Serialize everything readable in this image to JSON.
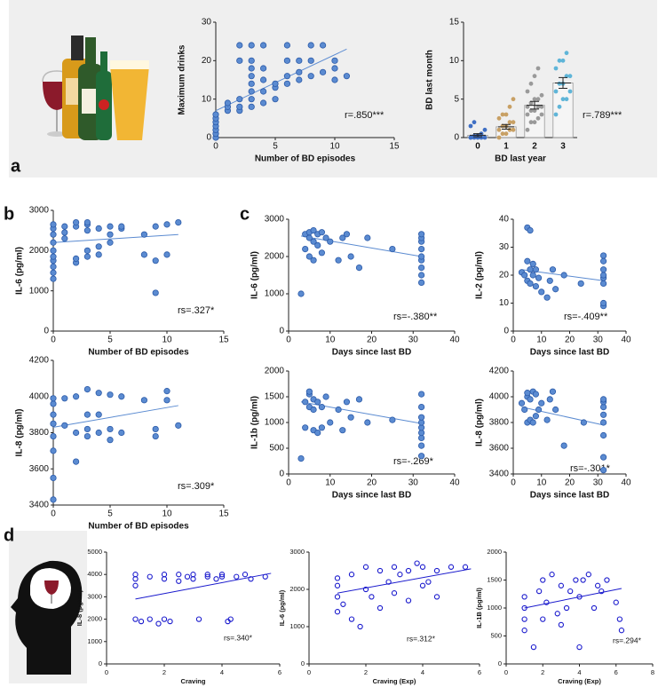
{
  "panel_labels": [
    "a",
    "b",
    "c",
    "d"
  ],
  "chart_data": [
    {
      "type": "scatter",
      "xlabel": "Number of BD episodes",
      "ylabel": "Maximum drinks",
      "annotation": "r=.850***",
      "x": [
        0,
        0,
        0,
        0,
        0,
        0,
        0,
        1,
        1,
        1,
        2,
        2,
        2,
        2,
        2,
        3,
        3,
        3,
        3,
        3,
        3,
        3,
        3,
        4,
        4,
        4,
        4,
        4,
        5,
        5,
        5,
        6,
        6,
        6,
        6,
        7,
        7,
        7,
        8,
        8,
        8,
        9,
        9,
        10,
        10,
        10,
        11
      ],
      "y": [
        0,
        1,
        2,
        3,
        4,
        5,
        6,
        7,
        8,
        9,
        7,
        8,
        10,
        20,
        24,
        8,
        10,
        12,
        14,
        16,
        18,
        20,
        24,
        9,
        12,
        15,
        18,
        24,
        10,
        13,
        14,
        14,
        16,
        20,
        24,
        15,
        17,
        20,
        16,
        20,
        24,
        17,
        24,
        15,
        18,
        20,
        16
      ],
      "fit": {
        "x": [
          0,
          11
        ],
        "y": [
          7,
          23
        ]
      },
      "xlim": [
        0,
        15
      ],
      "xticks": [
        0,
        5,
        10,
        15
      ],
      "ylim": [
        0,
        30
      ],
      "yticks": [
        0,
        10,
        20,
        30
      ],
      "color": "#5b8bd1",
      "marker": "filled"
    },
    {
      "type": "bar",
      "xlabel": "BD last year",
      "ylabel": "BD last month",
      "annotation": "r=.789***",
      "categories": [
        "0",
        "1",
        "2",
        "3"
      ],
      "values": [
        0.3,
        1.4,
        4.2,
        7.1
      ],
      "errors": [
        0.2,
        0.3,
        0.5,
        0.7
      ],
      "points": [
        [
          0,
          0,
          0,
          0,
          0,
          0,
          0.2,
          0.3,
          0.5,
          1,
          1.5,
          2
        ],
        [
          0,
          0.5,
          0.5,
          1,
          1,
          1,
          1.5,
          1.5,
          2,
          2,
          2.5,
          3,
          3,
          4,
          5
        ],
        [
          1,
          2,
          2,
          2.5,
          3,
          3,
          3.5,
          3.5,
          4,
          4,
          4,
          4.5,
          5,
          5,
          5.5,
          6,
          7,
          8,
          9
        ],
        [
          3,
          4,
          5,
          5,
          6,
          6,
          7,
          7,
          8,
          8,
          9,
          10,
          10,
          11
        ]
      ],
      "colors": [
        "#3f6fc4",
        "#c8a064",
        "#9a9a9a",
        "#5fb5d8"
      ],
      "ylim": [
        0,
        15
      ],
      "yticks": [
        0,
        5,
        10,
        15
      ]
    },
    {
      "type": "scatter",
      "xlabel": "Number of BD episodes",
      "ylabel": "IL-6 (pg/ml)",
      "annotation": "rs=.327*",
      "x": [
        0,
        0,
        0,
        0,
        0,
        0,
        0,
        0,
        0,
        0,
        1,
        1,
        1,
        2,
        2,
        2,
        2,
        3,
        3,
        3,
        3,
        3,
        4,
        4,
        4,
        5,
        5,
        5,
        6,
        6,
        8,
        8,
        9,
        9,
        9,
        10,
        10,
        11
      ],
      "y": [
        1300,
        1450,
        1600,
        1750,
        1850,
        2000,
        2200,
        2400,
        2550,
        2650,
        2450,
        2600,
        2300,
        1700,
        1800,
        2600,
        2700,
        1850,
        2000,
        2500,
        2650,
        2700,
        1900,
        2100,
        2550,
        2200,
        2400,
        2600,
        2550,
        2600,
        1900,
        2400,
        950,
        1750,
        2600,
        1900,
        2650,
        2700
      ],
      "fit": {
        "x": [
          0,
          11
        ],
        "y": [
          2200,
          2400
        ]
      },
      "xlim": [
        0,
        15
      ],
      "xticks": [
        0,
        5,
        10,
        15
      ],
      "ylim": [
        0,
        3000
      ],
      "yticks": [
        0,
        1000,
        2000,
        3000
      ],
      "color": "#5b8bd1",
      "marker": "filled"
    },
    {
      "type": "scatter",
      "xlabel": "Number of BD episodes",
      "ylabel": "IL-8 (pg/ml)",
      "annotation": "rs=.309*",
      "x": [
        0,
        0,
        0,
        0,
        0,
        0,
        0,
        0,
        1,
        1,
        2,
        2,
        2,
        3,
        3,
        3,
        3,
        4,
        4,
        4,
        5,
        5,
        5,
        6,
        6,
        8,
        9,
        9,
        10,
        10,
        11
      ],
      "y": [
        3430,
        3550,
        3700,
        3780,
        3850,
        3900,
        3960,
        3990,
        3840,
        3990,
        3640,
        3800,
        4000,
        3780,
        3820,
        3900,
        4040,
        3800,
        3900,
        4020,
        3760,
        3820,
        4010,
        3800,
        4000,
        3980,
        3780,
        3820,
        3980,
        4030,
        3840
      ],
      "fit": {
        "x": [
          0,
          11
        ],
        "y": [
          3830,
          3950
        ]
      },
      "xlim": [
        0,
        15
      ],
      "xticks": [
        0,
        5,
        10,
        15
      ],
      "ylim": [
        3400,
        4200
      ],
      "yticks": [
        3400,
        3600,
        3800,
        4000,
        4200
      ],
      "color": "#5b8bd1",
      "marker": "filled"
    },
    {
      "type": "scatter",
      "xlabel": "Days since last BD",
      "ylabel": "IL-6 (pg/ml)",
      "annotation": "rs=-.380**",
      "x": [
        3,
        4,
        4,
        5,
        5,
        5,
        6,
        6,
        6,
        7,
        7,
        8,
        8,
        9,
        10,
        12,
        13,
        14,
        15,
        17,
        19,
        25,
        32,
        32,
        32,
        32,
        32,
        32,
        32,
        32,
        32
      ],
      "y": [
        1000,
        2600,
        2200,
        2000,
        2500,
        2650,
        1900,
        2400,
        2700,
        2300,
        2600,
        2100,
        2650,
        2500,
        2400,
        1900,
        2500,
        2600,
        2000,
        1700,
        2500,
        2200,
        1300,
        1500,
        1700,
        1900,
        2000,
        2200,
        2400,
        2500,
        2600
      ],
      "fit": {
        "x": [
          3,
          32
        ],
        "y": [
          2550,
          2000
        ]
      },
      "xlim": [
        0,
        40
      ],
      "xticks": [
        0,
        10,
        20,
        30,
        40
      ],
      "ylim": [
        0,
        3000
      ],
      "yticks": [
        0,
        1000,
        2000,
        3000
      ],
      "color": "#5b8bd1",
      "marker": "filled"
    },
    {
      "type": "scatter",
      "xlabel": "Days since last BD",
      "ylabel": "IL-2 (pg/ml)",
      "annotation": "rs=-.409**",
      "x": [
        3,
        4,
        5,
        5,
        5,
        6,
        6,
        6,
        7,
        7,
        8,
        8,
        9,
        10,
        12,
        13,
        14,
        15,
        18,
        24,
        32,
        32,
        32,
        32,
        32,
        32,
        32,
        32
      ],
      "y": [
        21,
        20,
        37,
        25,
        18,
        36,
        22,
        17,
        20,
        24,
        16,
        22,
        19,
        14,
        12,
        18,
        22,
        15,
        20,
        17,
        9,
        10,
        17,
        19,
        20,
        22,
        25,
        27
      ],
      "fit": {
        "x": [
          3,
          32
        ],
        "y": [
          22,
          18
        ]
      },
      "xlim": [
        0,
        40
      ],
      "xticks": [
        0,
        10,
        20,
        30,
        40
      ],
      "ylim": [
        0,
        40
      ],
      "yticks": [
        0,
        10,
        20,
        30,
        40
      ],
      "color": "#5b8bd1",
      "marker": "filled"
    },
    {
      "type": "scatter",
      "xlabel": "Days since last BD",
      "ylabel": "IL-1b (pg/ml)",
      "annotation": "rs=-.269*",
      "x": [
        3,
        4,
        4,
        5,
        5,
        5,
        6,
        6,
        6,
        7,
        7,
        8,
        8,
        9,
        10,
        12,
        13,
        14,
        15,
        17,
        19,
        25,
        32,
        32,
        32,
        32,
        32,
        32,
        32,
        32,
        32
      ],
      "y": [
        300,
        1400,
        900,
        1300,
        1550,
        1600,
        850,
        1250,
        1450,
        1400,
        800,
        1300,
        900,
        1500,
        1000,
        1250,
        850,
        1400,
        1100,
        1450,
        1000,
        1050,
        350,
        550,
        700,
        800,
        900,
        1000,
        1100,
        1300,
        1550
      ],
      "fit": {
        "x": [
          3,
          32
        ],
        "y": [
          1400,
          980
        ]
      },
      "xlim": [
        0,
        40
      ],
      "xticks": [
        0,
        10,
        20,
        30,
        40
      ],
      "ylim": [
        0,
        2000
      ],
      "yticks": [
        0,
        500,
        1000,
        1500,
        2000
      ],
      "color": "#5b8bd1",
      "marker": "filled"
    },
    {
      "type": "scatter",
      "xlabel": "Days since last BD",
      "ylabel": "IL-8 (pg/ml)",
      "annotation": "rs=-.301*",
      "x": [
        3,
        4,
        5,
        5,
        5,
        6,
        6,
        7,
        7,
        8,
        8,
        9,
        10,
        12,
        13,
        14,
        15,
        18,
        25,
        32,
        32,
        32,
        32,
        32,
        32,
        32,
        32
      ],
      "y": [
        3950,
        3900,
        3800,
        4000,
        4030,
        3820,
        3980,
        3800,
        4040,
        3850,
        4020,
        3900,
        3950,
        3820,
        3980,
        4040,
        3900,
        3620,
        3800,
        3430,
        3530,
        3700,
        3800,
        3860,
        3920,
        3960,
        3980
      ],
      "fit": {
        "x": [
          3,
          32
        ],
        "y": [
          3920,
          3780
        ]
      },
      "xlim": [
        0,
        40
      ],
      "xticks": [
        0,
        10,
        20,
        30,
        40
      ],
      "ylim": [
        3400,
        4200
      ],
      "yticks": [
        3400,
        3600,
        3800,
        4000,
        4200
      ],
      "color": "#5b8bd1",
      "marker": "filled"
    },
    {
      "type": "scatter",
      "xlabel": "Craving",
      "ylabel": "IL-8 (pg/ml)",
      "annotation": "rs=.340*",
      "x": [
        1,
        1,
        1,
        1,
        1.2,
        1.5,
        1.5,
        1.8,
        2,
        2,
        2,
        2.2,
        2.5,
        2.5,
        2.8,
        3,
        3,
        3.2,
        3.5,
        3.5,
        3.8,
        4,
        4,
        4.2,
        4.3,
        4.5,
        4.8,
        5,
        5.5
      ],
      "y": [
        2000,
        3500,
        3800,
        4000,
        1900,
        2000,
        3900,
        1800,
        2000,
        3800,
        4000,
        1900,
        3700,
        4000,
        3900,
        3800,
        4000,
        2000,
        3900,
        4000,
        3800,
        4000,
        3900,
        1900,
        2000,
        3900,
        4000,
        3800,
        3900
      ],
      "fit": {
        "x": [
          1,
          5.7
        ],
        "y": [
          2900,
          4050
        ]
      },
      "xlim": [
        0,
        6
      ],
      "xticks": [
        0,
        2,
        4,
        6
      ],
      "ylim": [
        0,
        5000
      ],
      "yticks": [
        0,
        1000,
        2000,
        3000,
        4000,
        5000
      ],
      "color": "#1a1acd",
      "marker": "open"
    },
    {
      "type": "scatter",
      "xlabel": "Craving (Exp)",
      "ylabel": "IL-6 (pg/ml)",
      "annotation": "rs=.312*",
      "x": [
        1,
        1,
        1,
        1,
        1.2,
        1.5,
        1.5,
        1.8,
        2,
        2,
        2.2,
        2.5,
        2.5,
        2.8,
        3,
        3,
        3.2,
        3.5,
        3.5,
        3.8,
        4,
        4,
        4.2,
        4.5,
        4.5,
        5,
        5.5
      ],
      "y": [
        1400,
        1800,
        2100,
        2300,
        1600,
        1200,
        2400,
        1000,
        2600,
        2000,
        1800,
        2500,
        1500,
        2200,
        2600,
        1900,
        2400,
        1700,
        2500,
        2700,
        2100,
        2600,
        2200,
        2500,
        1800,
        2600,
        2600
      ],
      "fit": {
        "x": [
          1,
          5.7
        ],
        "y": [
          1900,
          2550
        ]
      },
      "xlim": [
        0,
        6
      ],
      "xticks": [
        0,
        2,
        4,
        6
      ],
      "ylim": [
        0,
        3000
      ],
      "yticks": [
        0,
        1000,
        2000,
        3000
      ],
      "color": "#1a1acd",
      "marker": "open"
    },
    {
      "type": "scatter",
      "xlabel": "Craving (Exp)",
      "ylabel": "IL-1B (pg/ml)",
      "annotation": "rs=.294*",
      "x": [
        1,
        1,
        1,
        1,
        1.5,
        1.8,
        2,
        2,
        2.2,
        2.5,
        2.8,
        3,
        3,
        3.3,
        3.5,
        3.8,
        4,
        4,
        4.2,
        4.5,
        4.8,
        5,
        5.2,
        5.5,
        6,
        6.2,
        6.3
      ],
      "y": [
        600,
        800,
        1000,
        1200,
        300,
        1300,
        800,
        1500,
        1100,
        1600,
        900,
        1400,
        700,
        1000,
        1300,
        1500,
        300,
        1200,
        1500,
        1600,
        1000,
        1400,
        1300,
        1500,
        1100,
        800,
        600
      ],
      "fit": {
        "x": [
          1,
          6.3
        ],
        "y": [
          1000,
          1350
        ]
      },
      "xlim": [
        0,
        8
      ],
      "xticks": [
        0,
        2,
        4,
        6,
        8
      ],
      "ylim": [
        0,
        2000
      ],
      "yticks": [
        0,
        500,
        1000,
        1500,
        2000
      ],
      "color": "#1a1acd",
      "marker": "open"
    }
  ]
}
